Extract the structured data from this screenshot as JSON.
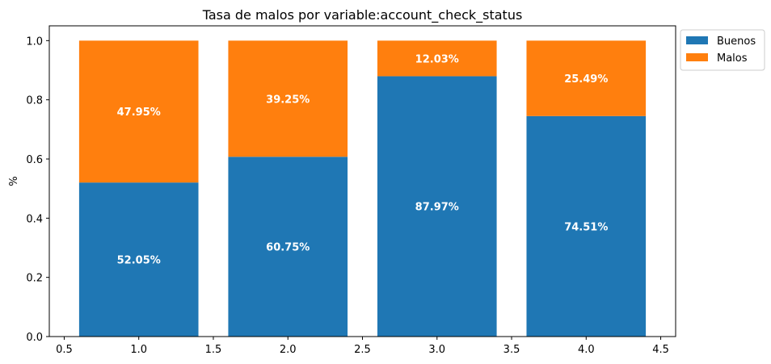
{
  "chart_data": {
    "type": "bar",
    "stacked": true,
    "title": "Tasa de malos por variable:account_check_status",
    "xlabel": "",
    "ylabel": "%",
    "x": [
      1.0,
      2.0,
      3.0,
      4.0
    ],
    "bar_width": 0.8,
    "series": [
      {
        "name": "Buenos",
        "color": "#1f77b4",
        "values": [
          0.5205,
          0.6075,
          0.8797,
          0.7451
        ],
        "labels": [
          "52.05%",
          "60.75%",
          "87.97%",
          "74.51%"
        ]
      },
      {
        "name": "Malos",
        "color": "#ff7f0e",
        "values": [
          0.4795,
          0.3925,
          0.1203,
          0.2549
        ],
        "labels": [
          "47.95%",
          "39.25%",
          "12.03%",
          "25.49%"
        ]
      }
    ],
    "xlim": [
      0.4,
      4.6
    ],
    "ylim": [
      0.0,
      1.05
    ],
    "xticks": [
      0.5,
      1.0,
      1.5,
      2.0,
      2.5,
      3.0,
      3.5,
      4.0,
      4.5
    ],
    "xtick_labels": [
      "0.5",
      "1.0",
      "1.5",
      "2.0",
      "2.5",
      "3.0",
      "3.5",
      "4.0",
      "4.5"
    ],
    "yticks": [
      0.0,
      0.2,
      0.4,
      0.6,
      0.8,
      1.0
    ],
    "ytick_labels": [
      "0.0",
      "0.2",
      "0.4",
      "0.6",
      "0.8",
      "1.0"
    ],
    "grid": false,
    "legend": {
      "position": "outside-top-right",
      "entries": [
        "Buenos",
        "Malos"
      ]
    }
  }
}
